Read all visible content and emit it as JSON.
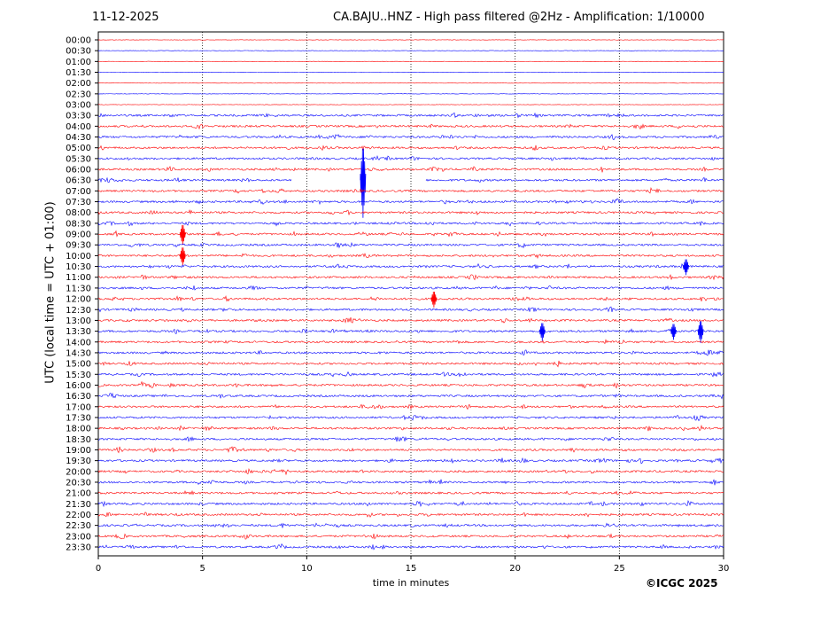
{
  "header": {
    "date": "11-12-2025",
    "title": "CA.BAJU..HNZ - High pass filtered @2Hz - Amplification: 1/10000"
  },
  "footer": {
    "copyright": "©ICGC 2025"
  },
  "colors": {
    "trace_a": "#ff0000",
    "trace_b": "#0000ff",
    "axis": "#000000"
  },
  "chart_data": {
    "type": "line",
    "xlabel": "time in minutes",
    "ylabel": "UTC (local time = UTC + 01:00)",
    "xlim": [
      0,
      30
    ],
    "xticks": [
      0,
      5,
      10,
      15,
      20,
      25,
      30
    ],
    "grid": "vertical dotted lines at x ticks",
    "rows": [
      "00:00",
      "00:30",
      "01:00",
      "01:30",
      "02:00",
      "02:30",
      "03:00",
      "03:30",
      "04:00",
      "04:30",
      "05:00",
      "05:30",
      "06:00",
      "06:30",
      "07:00",
      "07:30",
      "08:00",
      "08:30",
      "09:00",
      "09:30",
      "10:00",
      "10:30",
      "11:00",
      "11:30",
      "12:00",
      "12:30",
      "13:00",
      "13:30",
      "14:00",
      "14:30",
      "15:00",
      "15:30",
      "16:00",
      "16:30",
      "17:00",
      "17:30",
      "18:00",
      "18:30",
      "19:00",
      "19:30",
      "20:00",
      "20:30",
      "21:00",
      "21:30",
      "22:00",
      "22:30",
      "23:00",
      "23:30"
    ],
    "row_colors": "alternating red / blue starting red at 00:00",
    "quiet_until": "03:30",
    "events": [
      {
        "row": "06:30",
        "minute": 12.7,
        "amplitude": 3.5,
        "note": "large spike"
      },
      {
        "row": "09:00",
        "minute": 4.05,
        "amplitude": 1.0
      },
      {
        "row": "10:00",
        "minute": 4.05,
        "amplitude": 0.9
      },
      {
        "row": "10:30",
        "minute": 28.2,
        "amplitude": 0.8
      },
      {
        "row": "12:00",
        "minute": 16.1,
        "amplitude": 0.8
      },
      {
        "row": "13:30",
        "minute": 21.3,
        "amplitude": 0.9
      },
      {
        "row": "13:30",
        "minute": 27.6,
        "amplitude": 0.8
      },
      {
        "row": "13:30",
        "minute": 28.9,
        "amplitude": 1.1
      }
    ],
    "gaps": [
      {
        "row": "06:30",
        "from": 9.3,
        "to": 15.7
      }
    ]
  }
}
